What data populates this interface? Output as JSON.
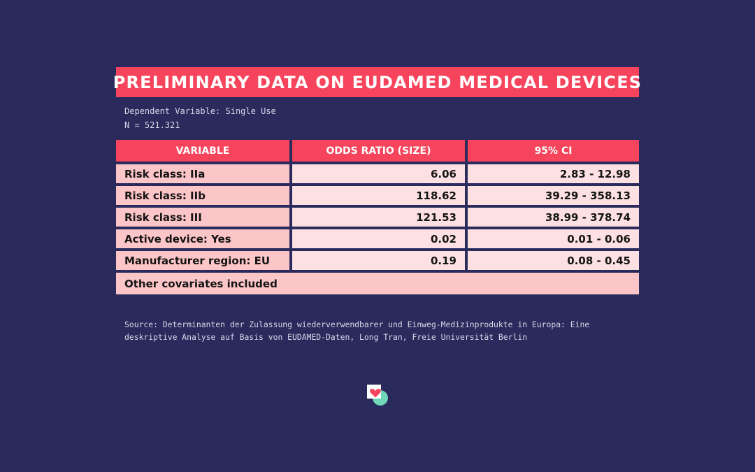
{
  "title": "PRELIMINARY DATA ON EUDAMED MEDICAL DEVICES",
  "meta": {
    "dependent_variable": "Dependent Variable: Single Use",
    "n": "N = 521.321"
  },
  "table": {
    "headers": [
      "VARIABLE",
      "ODDS RATIO (SIZE)",
      "95% CI"
    ],
    "rows": [
      {
        "variable": "Risk class: IIa",
        "odds_ratio": "6.06",
        "ci": "2.83 - 12.98"
      },
      {
        "variable": "Risk class: IIb",
        "odds_ratio": "118.62",
        "ci": "39.29 - 358.13"
      },
      {
        "variable": "Risk class: III",
        "odds_ratio": "121.53",
        "ci": "38.99 - 378.74"
      },
      {
        "variable": "Active device: Yes",
        "odds_ratio": "0.02",
        "ci": "0.01 - 0.06"
      },
      {
        "variable": "Manufacturer region: EU",
        "odds_ratio": "0.19",
        "ci": "0.08 - 0.45"
      }
    ],
    "footer_row": "Other covariates included"
  },
  "source": "Source: Determinanten der Zulassung wiederverwendbarer und Einweg-Medizinprodukte in Europa: Eine deskriptive Analyse auf Basis von EUDAMED-Daten, Long Tran, Freie Universität Berlin",
  "colors": {
    "background": "#2a2a5c",
    "accent": "#f5445b",
    "row_label_bg": "#fcc5c7",
    "row_value_bg": "#fde0e1",
    "logo_teal": "#6fd6b8"
  },
  "logo": {
    "icon": "heart-logo-icon"
  }
}
